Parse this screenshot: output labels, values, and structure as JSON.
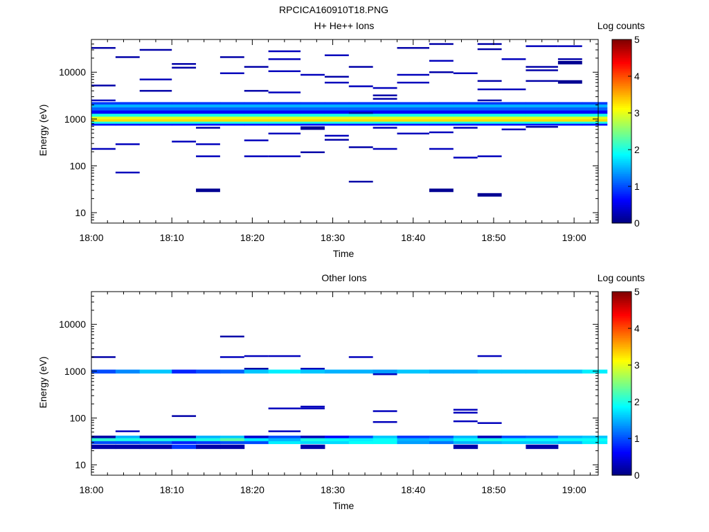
{
  "figure_title": "RPCICA160910T18.PNG",
  "colors": {
    "colormap": [
      "#00007f",
      "#0000ff",
      "#007fff",
      "#00ffff",
      "#7fff7f",
      "#ffff00",
      "#ff7f00",
      "#ff0000",
      "#7f0000"
    ]
  },
  "chart_data": [
    {
      "type": "heatmap",
      "title": "H+ He++ Ions",
      "xlabel": "Time",
      "ylabel": "Energy (eV)",
      "yscale": "log",
      "xlim": [
        "18:00",
        "19:03"
      ],
      "ylim": [
        6,
        50000
      ],
      "xticks": [
        "18:00",
        "18:10",
        "18:20",
        "18:30",
        "18:40",
        "18:50",
        "19:00"
      ],
      "yticks": [
        "10",
        "100",
        "1000",
        "10000"
      ],
      "colorbar": {
        "label": "Log counts",
        "range": [
          0,
          5
        ],
        "ticks": [
          "0",
          "1",
          "2",
          "3",
          "4",
          "5"
        ]
      },
      "time_bins": [
        "18:00",
        "18:03",
        "18:06",
        "18:10",
        "18:13",
        "18:16",
        "18:19",
        "18:22",
        "18:26",
        "18:29",
        "18:32",
        "18:35",
        "18:38",
        "18:42",
        "18:45",
        "18:48",
        "18:51",
        "18:54",
        "18:58",
        "19:01"
      ],
      "core_band": {
        "energy_range": [
          730,
          2300
        ],
        "levels": [
          {
            "e": 2200,
            "v": 0.9
          },
          {
            "e": 1900,
            "v": 1.5
          },
          {
            "e": 1650,
            "v": 1.1
          },
          {
            "e": 1400,
            "v": 0.6
          },
          {
            "e": 1200,
            "v": 2.0
          },
          {
            "e": 1050,
            "v": 3.0
          },
          {
            "e": 930,
            "v": 3.3
          },
          {
            "e": 830,
            "v": 2.0
          },
          {
            "e": 760,
            "v": 0.7
          }
        ]
      },
      "points": [
        {
          "t": "18:00",
          "e": 33000,
          "v": 0.2
        },
        {
          "t": "18:00",
          "e": 5200,
          "v": 0.2
        },
        {
          "t": "18:00",
          "e": 2500,
          "v": 0.3
        },
        {
          "t": "18:00",
          "e": 230,
          "v": 0.3
        },
        {
          "t": "18:03",
          "e": 21000,
          "v": 0.2
        },
        {
          "t": "18:03",
          "e": 290,
          "v": 0.3
        },
        {
          "t": "18:03",
          "e": 72,
          "v": 0.3
        },
        {
          "t": "18:06",
          "e": 30000,
          "v": 0.2
        },
        {
          "t": "18:06",
          "e": 7000,
          "v": 0.3
        },
        {
          "t": "18:06",
          "e": 4000,
          "v": 0.2
        },
        {
          "t": "18:10",
          "e": 15000,
          "v": 0.2
        },
        {
          "t": "18:10",
          "e": 12500,
          "v": 0.2
        },
        {
          "t": "18:10",
          "e": 330,
          "v": 0.3
        },
        {
          "t": "18:13",
          "e": 650,
          "v": 0.2
        },
        {
          "t": "18:13",
          "e": 290,
          "v": 0.3
        },
        {
          "t": "18:13",
          "e": 160,
          "v": 0.3
        },
        {
          "t": "18:13",
          "e": 30,
          "v": 0.1
        },
        {
          "t": "18:16",
          "e": 21000,
          "v": 0.2
        },
        {
          "t": "18:16",
          "e": 9500,
          "v": 0.3
        },
        {
          "t": "18:19",
          "e": 13000,
          "v": 0.2
        },
        {
          "t": "18:19",
          "e": 4000,
          "v": 0.2
        },
        {
          "t": "18:19",
          "e": 350,
          "v": 0.3
        },
        {
          "t": "18:19",
          "e": 160,
          "v": 0.3
        },
        {
          "t": "18:22",
          "e": 28000,
          "v": 0.3
        },
        {
          "t": "18:22",
          "e": 19000,
          "v": 0.3
        },
        {
          "t": "18:22",
          "e": 10500,
          "v": 0.3
        },
        {
          "t": "18:22",
          "e": 3700,
          "v": 0.3
        },
        {
          "t": "18:22",
          "e": 490,
          "v": 0.3
        },
        {
          "t": "18:22",
          "e": 160,
          "v": 0.3
        },
        {
          "t": "18:26",
          "e": 8800,
          "v": 0.3
        },
        {
          "t": "18:26",
          "e": 640,
          "v": 0.1
        },
        {
          "t": "18:26",
          "e": 195,
          "v": 0.2
        },
        {
          "t": "18:29",
          "e": 23000,
          "v": 0.3
        },
        {
          "t": "18:29",
          "e": 8000,
          "v": 0.2
        },
        {
          "t": "18:29",
          "e": 6000,
          "v": 0.3
        },
        {
          "t": "18:29",
          "e": 440,
          "v": 0.3
        },
        {
          "t": "18:29",
          "e": 360,
          "v": 0.2
        },
        {
          "t": "18:32",
          "e": 13000,
          "v": 0.2
        },
        {
          "t": "18:32",
          "e": 5000,
          "v": 0.3
        },
        {
          "t": "18:32",
          "e": 1350,
          "v": 0.2
        },
        {
          "t": "18:32",
          "e": 250,
          "v": 0.2
        },
        {
          "t": "18:32",
          "e": 46,
          "v": 0.2
        },
        {
          "t": "18:35",
          "e": 4600,
          "v": 0.3
        },
        {
          "t": "18:35",
          "e": 3200,
          "v": 0.2
        },
        {
          "t": "18:35",
          "e": 2700,
          "v": 0.2
        },
        {
          "t": "18:35",
          "e": 650,
          "v": 0.3
        },
        {
          "t": "18:35",
          "e": 230,
          "v": 0.3
        },
        {
          "t": "18:38",
          "e": 33000,
          "v": 0.2
        },
        {
          "t": "18:38",
          "e": 8800,
          "v": 0.3
        },
        {
          "t": "18:38",
          "e": 6000,
          "v": 0.3
        },
        {
          "t": "18:38",
          "e": 490,
          "v": 0.3
        },
        {
          "t": "18:42",
          "e": 40000,
          "v": 0.2
        },
        {
          "t": "18:42",
          "e": 17500,
          "v": 0.3
        },
        {
          "t": "18:42",
          "e": 10000,
          "v": 0.2
        },
        {
          "t": "18:42",
          "e": 520,
          "v": 0.3
        },
        {
          "t": "18:42",
          "e": 230,
          "v": 0.3
        },
        {
          "t": "18:42",
          "e": 30,
          "v": 0.1
        },
        {
          "t": "18:45",
          "e": 9500,
          "v": 0.3
        },
        {
          "t": "18:45",
          "e": 650,
          "v": 0.3
        },
        {
          "t": "18:45",
          "e": 150,
          "v": 0.3
        },
        {
          "t": "18:48",
          "e": 40000,
          "v": 0.2
        },
        {
          "t": "18:48",
          "e": 31000,
          "v": 0.2
        },
        {
          "t": "18:48",
          "e": 6500,
          "v": 0.2
        },
        {
          "t": "18:48",
          "e": 4300,
          "v": 0.3
        },
        {
          "t": "18:48",
          "e": 2500,
          "v": 0.2
        },
        {
          "t": "18:48",
          "e": 160,
          "v": 0.3
        },
        {
          "t": "18:48",
          "e": 24,
          "v": 0.1
        },
        {
          "t": "18:51",
          "e": 19000,
          "v": 0.3
        },
        {
          "t": "18:51",
          "e": 4300,
          "v": 0.3
        },
        {
          "t": "18:51",
          "e": 600,
          "v": 0.3
        },
        {
          "t": "18:54",
          "e": 36000,
          "v": 0.3
        },
        {
          "t": "18:54",
          "e": 13000,
          "v": 0.2
        },
        {
          "t": "18:54",
          "e": 11000,
          "v": 0.2
        },
        {
          "t": "18:54",
          "e": 6500,
          "v": 0.2
        },
        {
          "t": "18:54",
          "e": 680,
          "v": 0.2
        },
        {
          "t": "18:58",
          "e": 36000,
          "v": 0.3
        },
        {
          "t": "18:58",
          "e": 19000,
          "v": 0.2
        },
        {
          "t": "18:58",
          "e": 16000,
          "v": 0.1
        },
        {
          "t": "18:58",
          "e": 6200,
          "v": 0.1
        }
      ]
    },
    {
      "type": "heatmap",
      "title": "Other Ions",
      "xlabel": "Time",
      "ylabel": "Energy (eV)",
      "yscale": "log",
      "xlim": [
        "18:00",
        "19:03"
      ],
      "ylim": [
        6,
        50000
      ],
      "xticks": [
        "18:00",
        "18:10",
        "18:20",
        "18:30",
        "18:40",
        "18:50",
        "19:00"
      ],
      "yticks": [
        "10",
        "100",
        "1000",
        "10000"
      ],
      "colorbar": {
        "label": "Log counts",
        "range": [
          0,
          5
        ],
        "ticks": [
          "0",
          "1",
          "2",
          "3",
          "4",
          "5"
        ]
      },
      "time_bins": [
        "18:00",
        "18:03",
        "18:06",
        "18:10",
        "18:13",
        "18:16",
        "18:19",
        "18:22",
        "18:26",
        "18:29",
        "18:32",
        "18:35",
        "18:38",
        "18:42",
        "18:45",
        "18:48",
        "18:51",
        "18:54",
        "18:58",
        "19:01"
      ],
      "bands": [
        {
          "e_lo": 900,
          "e_hi": 1080,
          "values": [
            1.0,
            1.3,
            1.6,
            0.8,
            1.0,
            1.1,
            1.6,
            1.8,
            1.6,
            1.5,
            1.5,
            1.4,
            1.6,
            1.5,
            1.5,
            1.6,
            1.6,
            1.6,
            1.6,
            1.8
          ]
        },
        {
          "e_lo": 37,
          "e_hi": 42,
          "values": [
            0.2,
            1.5,
            0.3,
            0.3,
            1.5,
            1.6,
            0.4,
            1.0,
            0.3,
            0.6,
            1.0,
            1.6,
            0.9,
            1.0,
            1.5,
            0.3,
            1.0,
            1.1,
            1.5,
            1.6
          ]
        },
        {
          "e_lo": 32,
          "e_hi": 37,
          "values": [
            2.1,
            2.0,
            2.0,
            2.0,
            2.0,
            2.3,
            1.8,
            1.5,
            2.0,
            1.9,
            1.8,
            1.9,
            1.5,
            1.6,
            1.9,
            2.0,
            1.9,
            1.9,
            1.9,
            1.9
          ]
        },
        {
          "e_lo": 28,
          "e_hi": 32,
          "values": [
            1.0,
            1.0,
            1.1,
            0.8,
            0.9,
            1.0,
            1.0,
            1.8,
            1.7,
            1.7,
            1.9,
            1.9,
            1.4,
            1.2,
            1.5,
            1.5,
            1.6,
            1.6,
            1.5,
            1.8
          ]
        },
        {
          "e_lo": 22,
          "e_hi": 27,
          "values": [
            0.2,
            0.2,
            0.2,
            0.9,
            0.2,
            0.2,
            -1,
            -1,
            0.2,
            -1,
            -1,
            -1,
            -1,
            -1,
            0.2,
            -1,
            -1,
            0.2,
            -1,
            -1
          ]
        }
      ],
      "points": [
        {
          "t": "18:00",
          "e": 2000,
          "v": 0.2
        },
        {
          "t": "18:03",
          "e": 52,
          "v": 0.3
        },
        {
          "t": "18:10",
          "e": 110,
          "v": 0.2
        },
        {
          "t": "18:16",
          "e": 5500,
          "v": 0.2
        },
        {
          "t": "18:16",
          "e": 2000,
          "v": 0.3
        },
        {
          "t": "18:19",
          "e": 2100,
          "v": 0.3
        },
        {
          "t": "18:19",
          "e": 1130,
          "v": 0.2
        },
        {
          "t": "18:22",
          "e": 2100,
          "v": 0.3
        },
        {
          "t": "18:22",
          "e": 160,
          "v": 0.3
        },
        {
          "t": "18:22",
          "e": 52,
          "v": 0.3
        },
        {
          "t": "18:26",
          "e": 175,
          "v": 0.3
        },
        {
          "t": "18:26",
          "e": 160,
          "v": 0.3
        },
        {
          "t": "18:26",
          "e": 1130,
          "v": 0.3
        },
        {
          "t": "18:32",
          "e": 2000,
          "v": 0.3
        },
        {
          "t": "18:35",
          "e": 140,
          "v": 0.3
        },
        {
          "t": "18:35",
          "e": 82,
          "v": 0.3
        },
        {
          "t": "18:35",
          "e": 860,
          "v": 0.3
        },
        {
          "t": "18:45",
          "e": 150,
          "v": 0.3
        },
        {
          "t": "18:45",
          "e": 130,
          "v": 0.3
        },
        {
          "t": "18:45",
          "e": 85,
          "v": 0.3
        },
        {
          "t": "18:48",
          "e": 2100,
          "v": 0.3
        },
        {
          "t": "18:48",
          "e": 78,
          "v": 0.3
        }
      ]
    }
  ]
}
